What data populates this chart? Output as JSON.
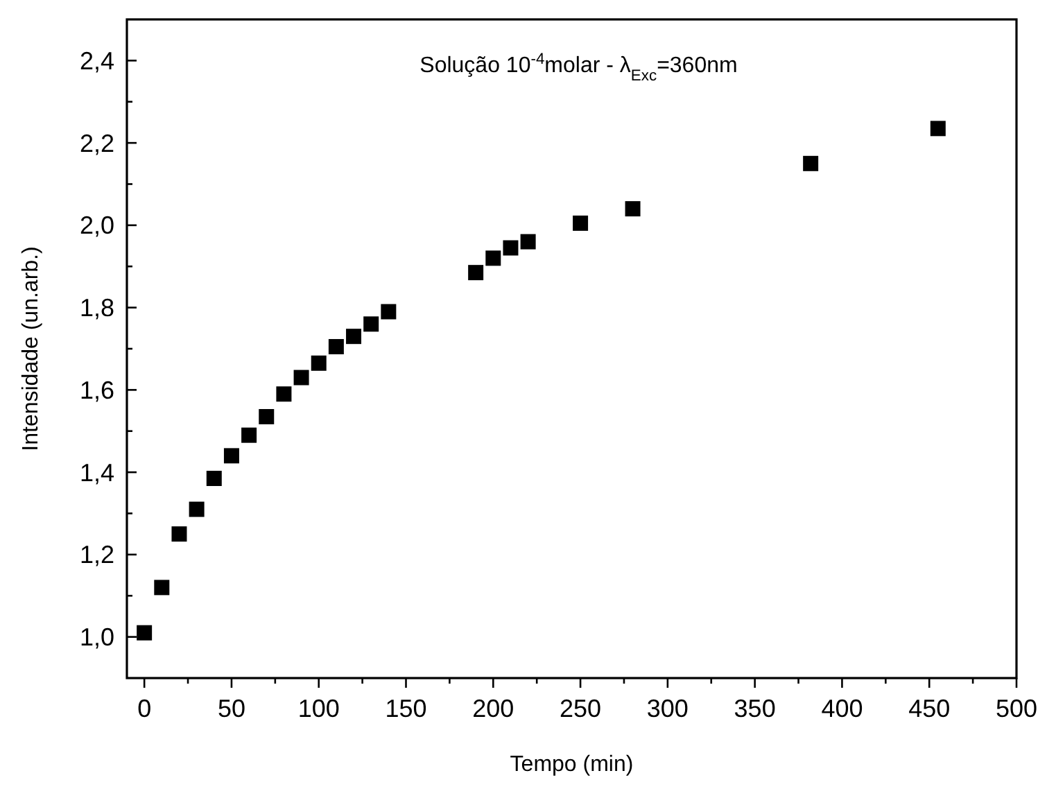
{
  "chart_data": {
    "type": "scatter",
    "xlabel": "Tempo (min)",
    "ylabel": "Intensidade (un.arb.)",
    "annotations": [
      "Solução 10$^{-4}$molar -  λ$_{Exc}$=360nm"
    ],
    "x": [
      0,
      10,
      20,
      30,
      40,
      50,
      60,
      70,
      80,
      90,
      100,
      110,
      120,
      130,
      140,
      190,
      200,
      210,
      220,
      250,
      280,
      382,
      455
    ],
    "series": [
      {
        "color": "#000000",
        "values": [
          1.01,
          1.12,
          1.25,
          1.31,
          1.385,
          1.44,
          1.49,
          1.535,
          1.59,
          1.63,
          1.665,
          1.705,
          1.73,
          1.76,
          1.79,
          1.885,
          1.92,
          1.945,
          1.96,
          2.005,
          2.04,
          2.15,
          2.235
        ]
      }
    ],
    "marker": "square",
    "xlim": [
      -10,
      500
    ],
    "ylim": [
      0.9,
      2.5
    ],
    "xticks": [
      0,
      {
        "value": 25,
        "label": null
      },
      50,
      {
        "value": 75,
        "label": null
      },
      100,
      {
        "value": 125,
        "label": null
      },
      150,
      {
        "value": 175,
        "label": null
      },
      200,
      {
        "value": 225,
        "label": null
      },
      250,
      {
        "value": 275,
        "label": null
      },
      300,
      {
        "value": 325,
        "label": null
      },
      350,
      {
        "value": 375,
        "label": null
      },
      400,
      {
        "value": 425,
        "label": null
      },
      450,
      {
        "value": 475,
        "label": null
      },
      500
    ],
    "yticks": [
      {
        "value": 1.0,
        "label": "1,0"
      },
      {
        "value": 1.1,
        "label": null
      },
      {
        "value": 1.2,
        "label": "1,2"
      },
      {
        "value": 1.3,
        "label": null
      },
      {
        "value": 1.4,
        "label": "1,4"
      },
      {
        "value": 1.5,
        "label": null
      },
      {
        "value": 1.6,
        "label": "1,6"
      },
      {
        "value": 1.7,
        "label": null
      },
      {
        "value": 1.8,
        "label": "1,8"
      },
      {
        "value": 1.9,
        "label": null
      },
      {
        "value": 2.0,
        "label": "2,0"
      },
      {
        "value": 2.1,
        "label": null
      },
      {
        "value": 2.2,
        "label": "2,2"
      },
      {
        "value": 2.3,
        "label": null
      },
      {
        "value": 2.4,
        "label": "2,4"
      }
    ],
    "line_style": "none"
  }
}
